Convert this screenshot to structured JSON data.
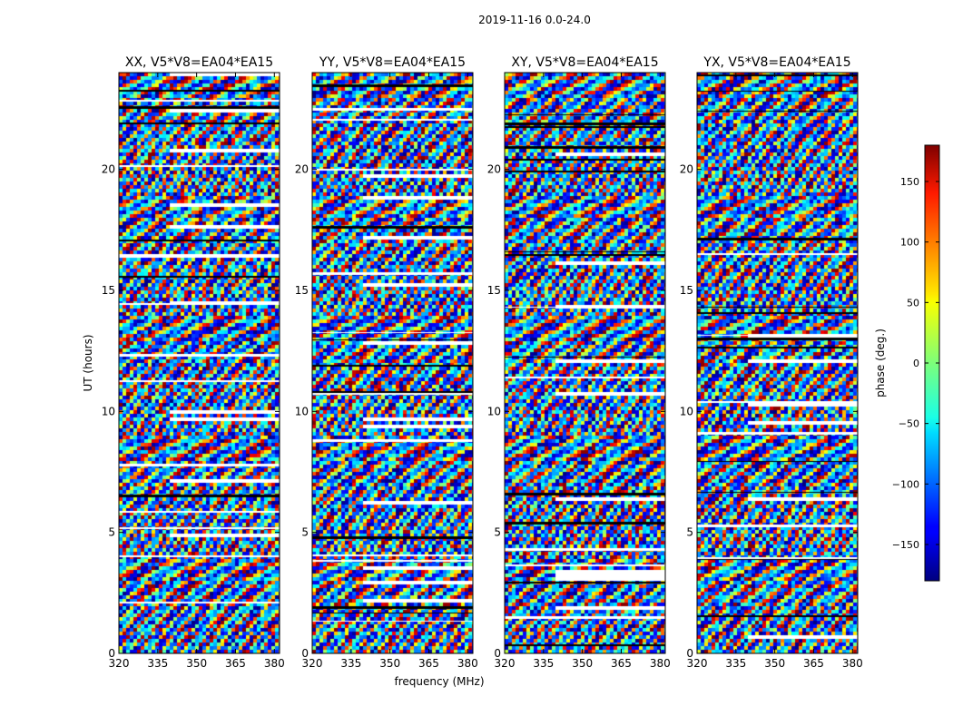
{
  "figure": {
    "suptitle": "2019-11-16 0.0-24.0",
    "xlabel": "frequency (MHz)",
    "ylabel": "UT (hours)",
    "colorbar_label": "phase (deg.)",
    "colorbar_ticks": [
      "150",
      "100",
      "50",
      "0",
      "−50",
      "−100",
      "−150"
    ],
    "colorbar_tick_values": [
      150,
      100,
      50,
      0,
      -50,
      -100,
      -150
    ],
    "colorbar_range": [
      -180,
      180
    ],
    "colormap": "jet"
  },
  "chart_data": [
    {
      "type": "heatmap",
      "title": "XX, V5*V8=EA04*EA15",
      "x_ticks": [
        "320",
        "335",
        "350",
        "365",
        "380"
      ],
      "x_tick_values": [
        320,
        335,
        350,
        365,
        380
      ],
      "xlim": [
        320,
        382
      ],
      "y_ticks": [
        "0",
        "5",
        "10",
        "15",
        "20"
      ],
      "y_tick_values": [
        0,
        5,
        10,
        15,
        20
      ],
      "ylim": [
        0,
        24
      ],
      "value": "phase (deg.)",
      "vrange": [
        -180,
        180
      ]
    },
    {
      "type": "heatmap",
      "title": "YY, V5*V8=EA04*EA15",
      "x_ticks": [
        "320",
        "335",
        "350",
        "365",
        "380"
      ],
      "x_tick_values": [
        320,
        335,
        350,
        365,
        380
      ],
      "xlim": [
        320,
        382
      ],
      "y_ticks": [
        "0",
        "5",
        "10",
        "15",
        "20"
      ],
      "y_tick_values": [
        0,
        5,
        10,
        15,
        20
      ],
      "ylim": [
        0,
        24
      ],
      "value": "phase (deg.)",
      "vrange": [
        -180,
        180
      ]
    },
    {
      "type": "heatmap",
      "title": "XY, V5*V8=EA04*EA15",
      "x_ticks": [
        "320",
        "335",
        "350",
        "365",
        "380"
      ],
      "x_tick_values": [
        320,
        335,
        350,
        365,
        380
      ],
      "xlim": [
        320,
        382
      ],
      "y_ticks": [
        "0",
        "5",
        "10",
        "15",
        "20"
      ],
      "y_tick_values": [
        0,
        5,
        10,
        15,
        20
      ],
      "ylim": [
        0,
        24
      ],
      "value": "phase (deg.)",
      "vrange": [
        -180,
        180
      ]
    },
    {
      "type": "heatmap",
      "title": "YX, V5*V8=EA04*EA15",
      "x_ticks": [
        "320",
        "335",
        "350",
        "365",
        "380"
      ],
      "x_tick_values": [
        320,
        335,
        350,
        365,
        380
      ],
      "xlim": [
        320,
        382
      ],
      "y_ticks": [
        "0",
        "5",
        "10",
        "15",
        "20"
      ],
      "y_tick_values": [
        0,
        5,
        10,
        15,
        20
      ],
      "ylim": [
        0,
        24
      ],
      "value": "phase (deg.)",
      "vrange": [
        -180,
        180
      ]
    }
  ]
}
